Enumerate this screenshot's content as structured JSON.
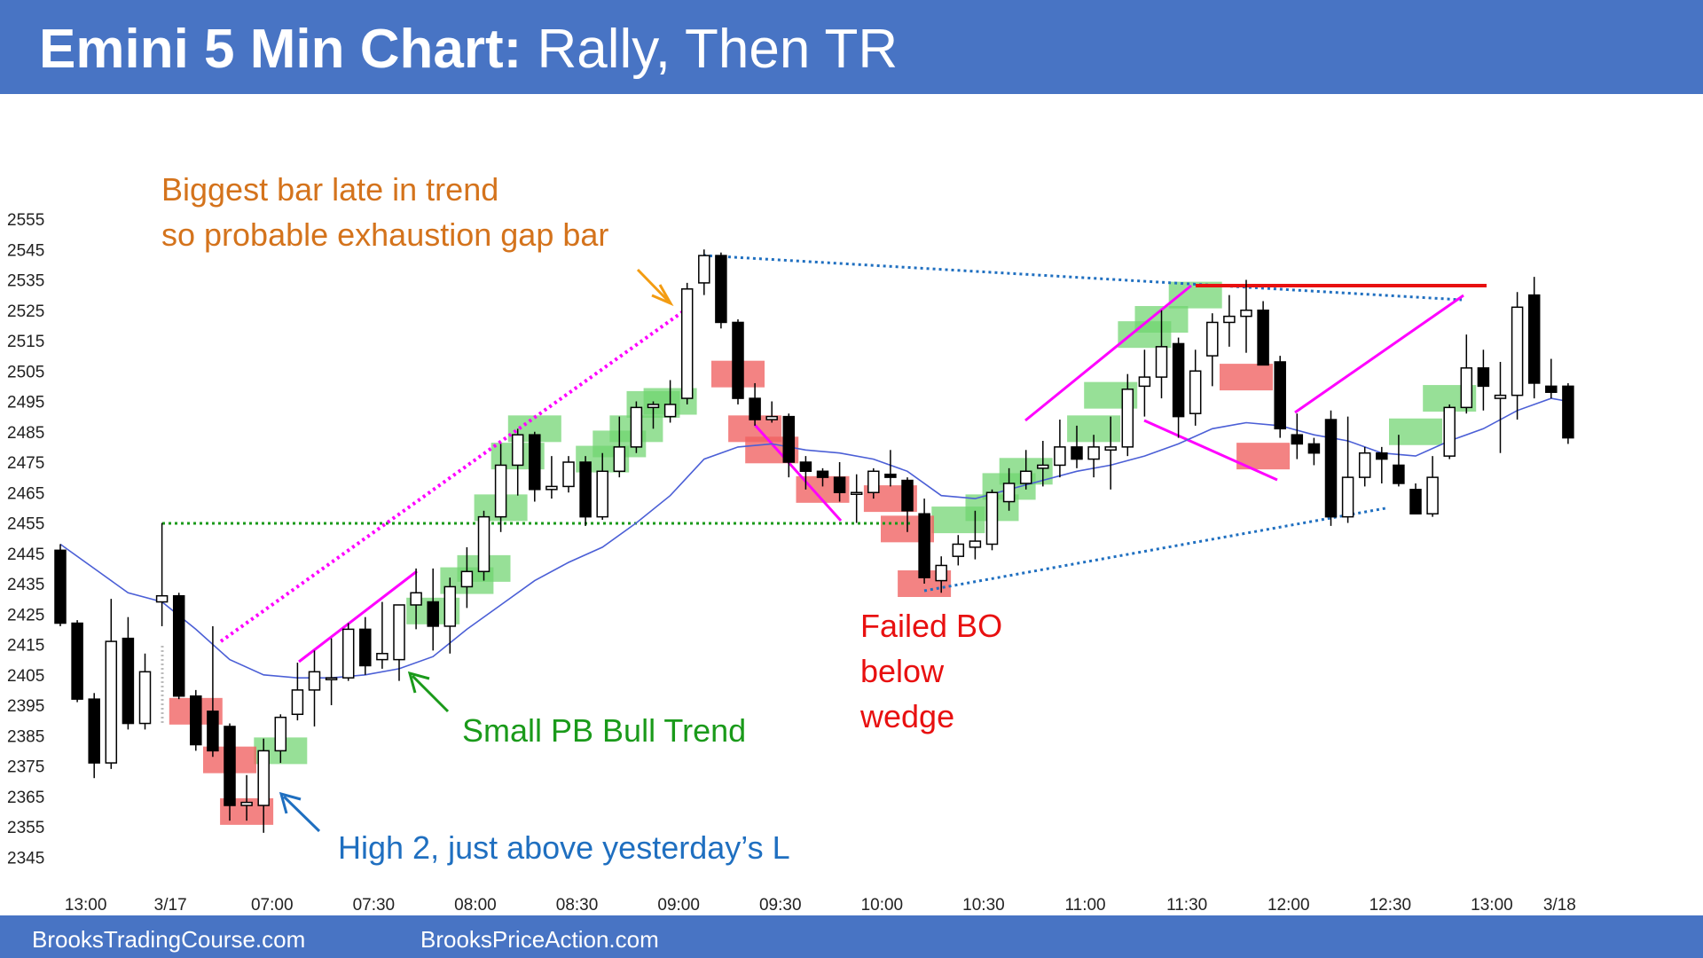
{
  "header": {
    "title_bold": "Emini 5 Min Chart:",
    "title_rest": " Rally, Then TR"
  },
  "footer": {
    "left": "BrooksTradingCourse.com",
    "right": "BrooksPriceAction.com"
  },
  "colors": {
    "banner": "#4874c4",
    "bull_zone": "#6fd46f",
    "bear_zone": "#f06060",
    "ema": "#4b5fd6",
    "magenta": "#ff00ff",
    "dotted_blue": "#1f6fc0",
    "dotted_green": "#1a9a1a",
    "resistance": "#e81010"
  },
  "chart_data": {
    "type": "candlestick",
    "title": "Emini 5 Min Chart: Rally, Then TR",
    "ylim": [
      2340,
      2560
    ],
    "y_ticks": [
      2555,
      2545,
      2535,
      2525,
      2515,
      2505,
      2495,
      2485,
      2475,
      2465,
      2455,
      2445,
      2435,
      2425,
      2415,
      2405,
      2395,
      2385,
      2375,
      2365,
      2355,
      2345
    ],
    "x_tick_labels": [
      {
        "bar": 1.5,
        "label": "13:00"
      },
      {
        "bar": 6.5,
        "label": "3/17"
      },
      {
        "bar": 12.5,
        "label": "07:00"
      },
      {
        "bar": 18.5,
        "label": "07:30"
      },
      {
        "bar": 24.5,
        "label": "08:00"
      },
      {
        "bar": 30.5,
        "label": "08:30"
      },
      {
        "bar": 36.5,
        "label": "09:00"
      },
      {
        "bar": 42.5,
        "label": "09:30"
      },
      {
        "bar": 48.5,
        "label": "10:00"
      },
      {
        "bar": 54.5,
        "label": "10:30"
      },
      {
        "bar": 60.5,
        "label": "11:00"
      },
      {
        "bar": 66.5,
        "label": "11:30"
      },
      {
        "bar": 72.5,
        "label": "12:00"
      },
      {
        "bar": 78.5,
        "label": "12:30"
      },
      {
        "bar": 84.5,
        "label": "13:00"
      },
      {
        "bar": 88.5,
        "label": "3/18"
      }
    ],
    "bars": [
      {
        "o": 2446,
        "h": 2448,
        "l": 2421,
        "c": 2422
      },
      {
        "o": 2422,
        "h": 2423,
        "l": 2396,
        "c": 2397
      },
      {
        "o": 2397,
        "h": 2399,
        "l": 2371,
        "c": 2376
      },
      {
        "o": 2376,
        "h": 2430,
        "l": 2374,
        "c": 2416
      },
      {
        "o": 2417,
        "h": 2424,
        "l": 2387,
        "c": 2389
      },
      {
        "o": 2389,
        "h": 2412,
        "l": 2387,
        "c": 2406
      },
      {
        "o": 2429,
        "h": 2455,
        "l": 2421,
        "c": 2431
      },
      {
        "o": 2431,
        "h": 2432,
        "l": 2397,
        "c": 2398
      },
      {
        "o": 2398,
        "h": 2400,
        "l": 2380,
        "c": 2382
      },
      {
        "o": 2393,
        "h": 2421,
        "l": 2378,
        "c": 2380
      },
      {
        "o": 2388,
        "h": 2389,
        "l": 2357,
        "c": 2362
      },
      {
        "o": 2362,
        "h": 2372,
        "l": 2357,
        "c": 2363
      },
      {
        "o": 2362,
        "h": 2384,
        "l": 2353,
        "c": 2380
      },
      {
        "o": 2380,
        "h": 2392,
        "l": 2376,
        "c": 2391
      },
      {
        "o": 2392,
        "h": 2409,
        "l": 2390,
        "c": 2400
      },
      {
        "o": 2400,
        "h": 2413,
        "l": 2388,
        "c": 2406
      },
      {
        "o": 2404,
        "h": 2417,
        "l": 2395,
        "c": 2404
      },
      {
        "o": 2404,
        "h": 2422,
        "l": 2403,
        "c": 2420
      },
      {
        "o": 2420,
        "h": 2424,
        "l": 2405,
        "c": 2408
      },
      {
        "o": 2410,
        "h": 2429,
        "l": 2407,
        "c": 2412
      },
      {
        "o": 2410,
        "h": 2426,
        "l": 2403,
        "c": 2428
      },
      {
        "o": 2428,
        "h": 2440,
        "l": 2420,
        "c": 2432
      },
      {
        "o": 2429,
        "h": 2440,
        "l": 2413,
        "c": 2421
      },
      {
        "o": 2421,
        "h": 2437,
        "l": 2412,
        "c": 2434
      },
      {
        "o": 2434,
        "h": 2447,
        "l": 2427,
        "c": 2439
      },
      {
        "o": 2439,
        "h": 2459,
        "l": 2436,
        "c": 2457
      },
      {
        "o": 2457,
        "h": 2481,
        "l": 2452,
        "c": 2474
      },
      {
        "o": 2474,
        "h": 2486,
        "l": 2464,
        "c": 2484
      },
      {
        "o": 2484,
        "h": 2485,
        "l": 2462,
        "c": 2466
      },
      {
        "o": 2466,
        "h": 2477,
        "l": 2463,
        "c": 2467
      },
      {
        "o": 2467,
        "h": 2477,
        "l": 2465,
        "c": 2475
      },
      {
        "o": 2475,
        "h": 2477,
        "l": 2454,
        "c": 2457
      },
      {
        "o": 2457,
        "h": 2478,
        "l": 2456,
        "c": 2472
      },
      {
        "o": 2472,
        "h": 2490,
        "l": 2470,
        "c": 2480
      },
      {
        "o": 2480,
        "h": 2495,
        "l": 2478,
        "c": 2493
      },
      {
        "o": 2493,
        "h": 2495,
        "l": 2486,
        "c": 2494
      },
      {
        "o": 2490,
        "h": 2502,
        "l": 2488,
        "c": 2494
      },
      {
        "o": 2496,
        "h": 2534,
        "l": 2494,
        "c": 2532
      },
      {
        "o": 2534,
        "h": 2545,
        "l": 2530,
        "c": 2543
      },
      {
        "o": 2543,
        "h": 2544,
        "l": 2519,
        "c": 2521
      },
      {
        "o": 2521,
        "h": 2522,
        "l": 2494,
        "c": 2496
      },
      {
        "o": 2496,
        "h": 2501,
        "l": 2487,
        "c": 2489
      },
      {
        "o": 2489,
        "h": 2495,
        "l": 2488,
        "c": 2490
      },
      {
        "o": 2490,
        "h": 2491,
        "l": 2470,
        "c": 2475
      },
      {
        "o": 2475,
        "h": 2477,
        "l": 2466,
        "c": 2472
      },
      {
        "o": 2472,
        "h": 2473,
        "l": 2467,
        "c": 2470
      },
      {
        "o": 2470,
        "h": 2475,
        "l": 2462,
        "c": 2465
      },
      {
        "o": 2465,
        "h": 2471,
        "l": 2455,
        "c": 2465
      },
      {
        "o": 2465,
        "h": 2473,
        "l": 2463,
        "c": 2472
      },
      {
        "o": 2471,
        "h": 2479,
        "l": 2467,
        "c": 2470
      },
      {
        "o": 2469,
        "h": 2470,
        "l": 2452,
        "c": 2459
      },
      {
        "o": 2458,
        "h": 2463,
        "l": 2435,
        "c": 2437
      },
      {
        "o": 2436,
        "h": 2444,
        "l": 2432,
        "c": 2441
      },
      {
        "o": 2444,
        "h": 2451,
        "l": 2441,
        "c": 2448
      },
      {
        "o": 2447,
        "h": 2459,
        "l": 2443,
        "c": 2449
      },
      {
        "o": 2448,
        "h": 2466,
        "l": 2446,
        "c": 2465
      },
      {
        "o": 2462,
        "h": 2473,
        "l": 2459,
        "c": 2468
      },
      {
        "o": 2468,
        "h": 2479,
        "l": 2466,
        "c": 2472
      },
      {
        "o": 2473,
        "h": 2482,
        "l": 2467,
        "c": 2474
      },
      {
        "o": 2474,
        "h": 2489,
        "l": 2470,
        "c": 2480
      },
      {
        "o": 2480,
        "h": 2487,
        "l": 2473,
        "c": 2476
      },
      {
        "o": 2476,
        "h": 2484,
        "l": 2470,
        "c": 2480
      },
      {
        "o": 2479,
        "h": 2490,
        "l": 2466,
        "c": 2480
      },
      {
        "o": 2480,
        "h": 2504,
        "l": 2477,
        "c": 2499
      },
      {
        "o": 2500,
        "h": 2512,
        "l": 2490,
        "c": 2503
      },
      {
        "o": 2503,
        "h": 2525,
        "l": 2496,
        "c": 2513
      },
      {
        "o": 2514,
        "h": 2516,
        "l": 2483,
        "c": 2490
      },
      {
        "o": 2491,
        "h": 2512,
        "l": 2487,
        "c": 2505
      },
      {
        "o": 2510,
        "h": 2524,
        "l": 2500,
        "c": 2521
      },
      {
        "o": 2521,
        "h": 2530,
        "l": 2513,
        "c": 2523
      },
      {
        "o": 2523,
        "h": 2535,
        "l": 2511,
        "c": 2525
      },
      {
        "o": 2525,
        "h": 2528,
        "l": 2507,
        "c": 2507
      },
      {
        "o": 2508,
        "h": 2510,
        "l": 2483,
        "c": 2486
      },
      {
        "o": 2484,
        "h": 2491,
        "l": 2476,
        "c": 2481
      },
      {
        "o": 2481,
        "h": 2483,
        "l": 2474,
        "c": 2478
      },
      {
        "o": 2489,
        "h": 2492,
        "l": 2454,
        "c": 2457
      },
      {
        "o": 2457,
        "h": 2490,
        "l": 2455,
        "c": 2470
      },
      {
        "o": 2470,
        "h": 2480,
        "l": 2467,
        "c": 2478
      },
      {
        "o": 2478,
        "h": 2480,
        "l": 2468,
        "c": 2476
      },
      {
        "o": 2474,
        "h": 2484,
        "l": 2467,
        "c": 2468
      },
      {
        "o": 2466,
        "h": 2468,
        "l": 2458,
        "c": 2458
      },
      {
        "o": 2458,
        "h": 2477,
        "l": 2457,
        "c": 2470
      },
      {
        "o": 2477,
        "h": 2494,
        "l": 2476,
        "c": 2493
      },
      {
        "o": 2493,
        "h": 2517,
        "l": 2491,
        "c": 2506
      },
      {
        "o": 2506,
        "h": 2512,
        "l": 2492,
        "c": 2500
      },
      {
        "o": 2496,
        "h": 2508,
        "l": 2478,
        "c": 2497
      },
      {
        "o": 2497,
        "h": 2531,
        "l": 2489,
        "c": 2526
      },
      {
        "o": 2530,
        "h": 2536,
        "l": 2496,
        "c": 2501
      },
      {
        "o": 2500,
        "h": 2509,
        "l": 2496,
        "c": 2498
      },
      {
        "o": 2500,
        "h": 2501,
        "l": 2481,
        "c": 2483
      }
    ],
    "ema": [
      {
        "bar": 0,
        "v": 2448
      },
      {
        "bar": 2,
        "v": 2440
      },
      {
        "bar": 4,
        "v": 2432
      },
      {
        "bar": 6,
        "v": 2429
      },
      {
        "bar": 8,
        "v": 2420
      },
      {
        "bar": 10,
        "v": 2410
      },
      {
        "bar": 12,
        "v": 2405
      },
      {
        "bar": 14,
        "v": 2404
      },
      {
        "bar": 16,
        "v": 2404
      },
      {
        "bar": 18,
        "v": 2405
      },
      {
        "bar": 20,
        "v": 2407
      },
      {
        "bar": 22,
        "v": 2411
      },
      {
        "bar": 24,
        "v": 2420
      },
      {
        "bar": 26,
        "v": 2428
      },
      {
        "bar": 28,
        "v": 2436
      },
      {
        "bar": 30,
        "v": 2442
      },
      {
        "bar": 32,
        "v": 2447
      },
      {
        "bar": 34,
        "v": 2455
      },
      {
        "bar": 36,
        "v": 2464
      },
      {
        "bar": 38,
        "v": 2476
      },
      {
        "bar": 40,
        "v": 2480
      },
      {
        "bar": 42,
        "v": 2481
      },
      {
        "bar": 44,
        "v": 2479
      },
      {
        "bar": 46,
        "v": 2478
      },
      {
        "bar": 48,
        "v": 2476
      },
      {
        "bar": 50,
        "v": 2472
      },
      {
        "bar": 52,
        "v": 2464
      },
      {
        "bar": 54,
        "v": 2463
      },
      {
        "bar": 56,
        "v": 2466
      },
      {
        "bar": 58,
        "v": 2469
      },
      {
        "bar": 60,
        "v": 2472
      },
      {
        "bar": 62,
        "v": 2474
      },
      {
        "bar": 64,
        "v": 2477
      },
      {
        "bar": 66,
        "v": 2481
      },
      {
        "bar": 68,
        "v": 2486
      },
      {
        "bar": 70,
        "v": 2488
      },
      {
        "bar": 72,
        "v": 2487
      },
      {
        "bar": 74,
        "v": 2484
      },
      {
        "bar": 76,
        "v": 2482
      },
      {
        "bar": 78,
        "v": 2478
      },
      {
        "bar": 80,
        "v": 2477
      },
      {
        "bar": 82,
        "v": 2482
      },
      {
        "bar": 84,
        "v": 2486
      },
      {
        "bar": 86,
        "v": 2492
      },
      {
        "bar": 88,
        "v": 2496
      },
      {
        "bar": 89,
        "v": 2495
      }
    ],
    "bull_zones": [
      {
        "bar": 13,
        "v": 2380
      },
      {
        "bar": 22,
        "v": 2426
      },
      {
        "bar": 24,
        "v": 2436
      },
      {
        "bar": 25,
        "v": 2440
      },
      {
        "bar": 26,
        "v": 2460
      },
      {
        "bar": 27,
        "v": 2477
      },
      {
        "bar": 28,
        "v": 2486
      },
      {
        "bar": 32,
        "v": 2476
      },
      {
        "bar": 33,
        "v": 2481
      },
      {
        "bar": 34,
        "v": 2486
      },
      {
        "bar": 35,
        "v": 2494
      },
      {
        "bar": 36,
        "v": 2495
      },
      {
        "bar": 53,
        "v": 2456
      },
      {
        "bar": 55,
        "v": 2460
      },
      {
        "bar": 56,
        "v": 2467
      },
      {
        "bar": 57,
        "v": 2472
      },
      {
        "bar": 61,
        "v": 2486
      },
      {
        "bar": 62,
        "v": 2497
      },
      {
        "bar": 64,
        "v": 2517
      },
      {
        "bar": 65,
        "v": 2522
      },
      {
        "bar": 67,
        "v": 2530
      },
      {
        "bar": 80,
        "v": 2485
      },
      {
        "bar": 82,
        "v": 2496
      }
    ],
    "bear_zones": [
      {
        "bar": 8,
        "v": 2393
      },
      {
        "bar": 10,
        "v": 2377
      },
      {
        "bar": 11,
        "v": 2360
      },
      {
        "bar": 40,
        "v": 2504
      },
      {
        "bar": 41,
        "v": 2486
      },
      {
        "bar": 42,
        "v": 2479
      },
      {
        "bar": 45,
        "v": 2466
      },
      {
        "bar": 49,
        "v": 2463
      },
      {
        "bar": 50,
        "v": 2453
      },
      {
        "bar": 51,
        "v": 2435
      },
      {
        "bar": 70,
        "v": 2503
      },
      {
        "bar": 71,
        "v": 2477
      }
    ],
    "annotations": [
      {
        "key": "exhaustion_l1",
        "text": "Biggest bar late in trend"
      },
      {
        "key": "exhaustion_l2",
        "text": "so probable exhaustion gap bar"
      },
      {
        "key": "small_pb",
        "text": "Small PB Bull Trend"
      },
      {
        "key": "high2",
        "text": "High 2, just above yesterday’s L"
      },
      {
        "key": "failed_l1",
        "text": "Failed BO"
      },
      {
        "key": "failed_l2",
        "text": "below"
      },
      {
        "key": "failed_l3",
        "text": "wedge"
      }
    ]
  }
}
